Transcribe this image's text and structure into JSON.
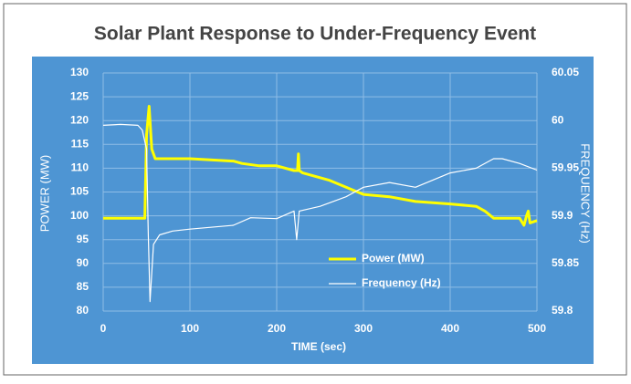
{
  "chart_data": {
    "type": "line",
    "title": "Solar Plant Response to Under-Frequency Event",
    "xlabel": "TIME (sec)",
    "ylabel": "POWER (MW)",
    "y2label": "FREQUENCY (Hz)",
    "xlim": [
      0,
      500
    ],
    "xticks": [
      0,
      100,
      200,
      300,
      400,
      500
    ],
    "ylim": [
      80,
      130
    ],
    "yticks": [
      80,
      85,
      90,
      95,
      100,
      105,
      110,
      115,
      120,
      125,
      130
    ],
    "y2lim": [
      59.8,
      60.05
    ],
    "y2ticks": [
      59.8,
      59.85,
      59.9,
      59.95,
      60,
      60.05
    ],
    "grid": true,
    "legend": "lower-right",
    "series": [
      {
        "name": "Power (MW)",
        "color": "#ffff00",
        "x": [
          0,
          48,
          50,
          53,
          56,
          60,
          100,
          150,
          160,
          180,
          200,
          220,
          224,
          225,
          226,
          230,
          260,
          280,
          300,
          330,
          360,
          400,
          430,
          440,
          450,
          480,
          485,
          488,
          490,
          492,
          500
        ],
        "values": [
          99.5,
          99.5,
          117,
          123,
          114,
          112,
          112,
          111.5,
          111,
          110.5,
          110.5,
          109.5,
          109.5,
          113,
          109.5,
          109,
          107.5,
          106,
          104.5,
          104,
          103,
          102.5,
          102,
          101,
          99.5,
          99.5,
          98,
          100,
          101,
          98.5,
          99
        ]
      },
      {
        "name": "Frequency (Hz)",
        "color": "#ffffff",
        "axis": "y2",
        "x": [
          0,
          20,
          40,
          45,
          50,
          52,
          54,
          56,
          58,
          65,
          80,
          100,
          150,
          170,
          200,
          220,
          223,
          226,
          250,
          280,
          300,
          330,
          360,
          400,
          430,
          450,
          460,
          480,
          500
        ],
        "values": [
          59.995,
          59.996,
          59.995,
          59.99,
          59.97,
          59.88,
          59.81,
          59.84,
          59.87,
          59.88,
          59.884,
          59.886,
          59.89,
          59.898,
          59.897,
          59.905,
          59.875,
          59.905,
          59.91,
          59.92,
          59.93,
          59.935,
          59.93,
          59.945,
          59.95,
          59.96,
          59.96,
          59.955,
          59.948
        ]
      }
    ]
  }
}
